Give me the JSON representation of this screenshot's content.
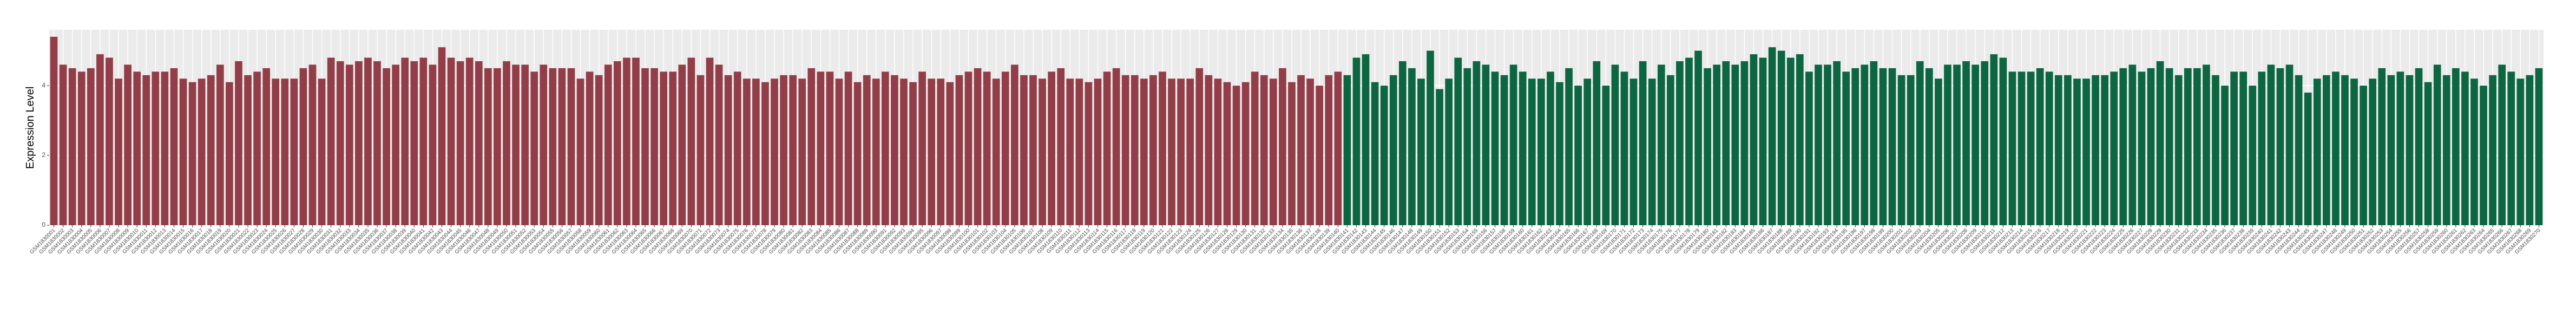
{
  "chart_data": {
    "type": "bar",
    "ylabel": "Expression Level",
    "categories": [
      "GSM1830001",
      "GSM1830002",
      "GSM1830003",
      "GSM1830004",
      "GSM1830005",
      "GSM1830006",
      "GSM1830007",
      "GSM1830008",
      "GSM1830009",
      "GSM1830010",
      "GSM1830011",
      "GSM1830012",
      "GSM1830013",
      "GSM1830014",
      "GSM1830015",
      "GSM1830016",
      "GSM1830017",
      "GSM1830018",
      "GSM1830019",
      "GSM1830020",
      "GSM1830021",
      "GSM1830022",
      "GSM1830023",
      "GSM1830024",
      "GSM1830025",
      "GSM1830026",
      "GSM1830027",
      "GSM1830028",
      "GSM1830029",
      "GSM1830030",
      "GSM1830031",
      "GSM1830032",
      "GSM1830033",
      "GSM1830034",
      "GSM1830035",
      "GSM1830036",
      "GSM1830037",
      "GSM1830038",
      "GSM1830039",
      "GSM1830040",
      "GSM1830041",
      "GSM1830042",
      "GSM1830043",
      "GSM1830044",
      "GSM1830045",
      "GSM1830046",
      "GSM1830047",
      "GSM1830048",
      "GSM1830049",
      "GSM1830050",
      "GSM1830051",
      "GSM1830052",
      "GSM1830053",
      "GSM1830054",
      "GSM1830055",
      "GSM1830056",
      "GSM1830057",
      "GSM1830058",
      "GSM1830059",
      "GSM1830060",
      "GSM1830061",
      "GSM1830062",
      "GSM1830063",
      "GSM1830064",
      "GSM1830065",
      "GSM1830066",
      "GSM1830067",
      "GSM1830068",
      "GSM1830069",
      "GSM1830070",
      "GSM1830071",
      "GSM1830072",
      "GSM1830073",
      "GSM1830074",
      "GSM1830075",
      "GSM1830076",
      "GSM1830077",
      "GSM1830078",
      "GSM1830079",
      "GSM1830080",
      "GSM1830081",
      "GSM1830082",
      "GSM1830083",
      "GSM1830084",
      "GSM1830085",
      "GSM1830086",
      "GSM1830087",
      "GSM1830088",
      "GSM1830089",
      "GSM1830090",
      "GSM1830091",
      "GSM1830092",
      "GSM1830093",
      "GSM1830094",
      "GSM1830095",
      "GSM1830096",
      "GSM1830097",
      "GSM1830098",
      "GSM1830099",
      "GSM1830100",
      "GSM1830101",
      "GSM1830102",
      "GSM1830103",
      "GSM1830104",
      "GSM1830105",
      "GSM1830106",
      "GSM1830107",
      "GSM1830108",
      "GSM1830109",
      "GSM1830110",
      "GSM1830111",
      "GSM1830112",
      "GSM1830113",
      "GSM1830114",
      "GSM1830115",
      "GSM1830116",
      "GSM1830117",
      "GSM1830118",
      "GSM1830119",
      "GSM1830120",
      "GSM1830121",
      "GSM1830122",
      "GSM1830123",
      "GSM1830124",
      "GSM1830125",
      "GSM1830126",
      "GSM1830127",
      "GSM1830128",
      "GSM1830129",
      "GSM1830130",
      "GSM1830131",
      "GSM1830132",
      "GSM1830133",
      "GSM1830134",
      "GSM1830135",
      "GSM1830136",
      "GSM1830137",
      "GSM1830138",
      "GSM1830139",
      "GSM1830140",
      "GSM1830141",
      "GSM1830142",
      "GSM1830143",
      "GSM1830144",
      "GSM1830145",
      "GSM1830146",
      "GSM1830147",
      "GSM1830148",
      "GSM1830149",
      "GSM1830150",
      "GSM1830151",
      "GSM1830152",
      "GSM1830153",
      "GSM1830154",
      "GSM1830155",
      "GSM1830156",
      "GSM1830157",
      "GSM1830158",
      "GSM1830159",
      "GSM1830160",
      "GSM1830161",
      "GSM1830162",
      "GSM1830163",
      "GSM1830164",
      "GSM1830165",
      "GSM1830166",
      "GSM1830167",
      "GSM1830168",
      "GSM1830169",
      "GSM1830170",
      "GSM1830171",
      "GSM1830172",
      "GSM1830173",
      "GSM1830174",
      "GSM1830175",
      "GSM1830176",
      "GSM1830177",
      "GSM1830178",
      "GSM1830179",
      "GSM1830180",
      "GSM1830181",
      "GSM1830182",
      "GSM1830183",
      "GSM1830184",
      "GSM1830185",
      "GSM1830186",
      "GSM1830187",
      "GSM1830188",
      "GSM1830189",
      "GSM1830190",
      "GSM1830191",
      "GSM1830192",
      "GSM1830193",
      "GSM1830194",
      "GSM1830195",
      "GSM1830196",
      "GSM1830197",
      "GSM1830198",
      "GSM1830199",
      "GSM1830200",
      "GSM1830201",
      "GSM1830202",
      "GSM1830203",
      "GSM1830204",
      "GSM1830205",
      "GSM1830206",
      "GSM1830207",
      "GSM1830208",
      "GSM1830209",
      "GSM1830210",
      "GSM1830211",
      "GSM1830212",
      "GSM1830213",
      "GSM1830214",
      "GSM1830215",
      "GSM1830216",
      "GSM1830217",
      "GSM1830218",
      "GSM1830219",
      "GSM1830220",
      "GSM1830221",
      "GSM1830222",
      "GSM1830223",
      "GSM1830224",
      "GSM1830225",
      "GSM1830226",
      "GSM1830227",
      "GSM1830228",
      "GSM1830229",
      "GSM1830230",
      "GSM1830231",
      "GSM1830232",
      "GSM1830233",
      "GSM1830234",
      "GSM1830235",
      "GSM1830236",
      "GSM1830237",
      "GSM1830238",
      "GSM1830239",
      "GSM1830240",
      "GSM1830241",
      "GSM1830242",
      "GSM1830243",
      "GSM1830244",
      "GSM1830245",
      "GSM1830246",
      "GSM1830247",
      "GSM1830248",
      "GSM1830249",
      "GSM1830250",
      "GSM1830251",
      "GSM1830252",
      "GSM1830253",
      "GSM1830254",
      "GSM1830255",
      "GSM1830256",
      "GSM1830257",
      "GSM1830258",
      "GSM1830259",
      "GSM1830260",
      "GSM1830261",
      "GSM1830262",
      "GSM1830263",
      "GSM1830264",
      "GSM1830265",
      "GSM1830266",
      "GSM1830267",
      "GSM1830268",
      "GSM1830269",
      "GSM1830270"
    ],
    "values": [
      5.4,
      4.6,
      4.5,
      4.4,
      4.5,
      4.9,
      4.8,
      4.2,
      4.6,
      4.4,
      4.3,
      4.4,
      4.4,
      4.5,
      4.2,
      4.1,
      4.2,
      4.3,
      4.6,
      4.1,
      4.7,
      4.3,
      4.4,
      4.5,
      4.2,
      4.2,
      4.2,
      4.5,
      4.6,
      4.2,
      4.8,
      4.7,
      4.6,
      4.7,
      4.8,
      4.7,
      4.5,
      4.6,
      4.8,
      4.7,
      4.8,
      4.6,
      5.1,
      4.8,
      4.7,
      4.8,
      4.7,
      4.5,
      4.5,
      4.7,
      4.6,
      4.6,
      4.4,
      4.6,
      4.5,
      4.5,
      4.5,
      4.2,
      4.4,
      4.3,
      4.6,
      4.7,
      4.8,
      4.8,
      4.5,
      4.5,
      4.4,
      4.4,
      4.6,
      4.8,
      4.3,
      4.8,
      4.6,
      4.3,
      4.4,
      4.2,
      4.2,
      4.1,
      4.2,
      4.3,
      4.3,
      4.2,
      4.5,
      4.4,
      4.4,
      4.2,
      4.4,
      4.1,
      4.3,
      4.2,
      4.4,
      4.3,
      4.2,
      4.1,
      4.4,
      4.2,
      4.2,
      4.1,
      4.3,
      4.4,
      4.5,
      4.4,
      4.2,
      4.4,
      4.6,
      4.3,
      4.3,
      4.2,
      4.4,
      4.5,
      4.2,
      4.2,
      4.1,
      4.2,
      4.4,
      4.5,
      4.3,
      4.3,
      4.2,
      4.3,
      4.4,
      4.2,
      4.2,
      4.2,
      4.5,
      4.3,
      4.2,
      4.1,
      4.0,
      4.1,
      4.4,
      4.3,
      4.2,
      4.5,
      4.1,
      4.3,
      4.2,
      4.0,
      4.3,
      4.4,
      4.3,
      4.8,
      4.9,
      4.1,
      4.0,
      4.3,
      4.7,
      4.5,
      4.2,
      5.0,
      3.9,
      4.2,
      4.8,
      4.5,
      4.7,
      4.6,
      4.4,
      4.3,
      4.6,
      4.4,
      4.2,
      4.2,
      4.4,
      4.1,
      4.5,
      4.0,
      4.2,
      4.7,
      4.0,
      4.6,
      4.4,
      4.2,
      4.7,
      4.2,
      4.6,
      4.3,
      4.7,
      4.8,
      5.0,
      4.5,
      4.6,
      4.7,
      4.6,
      4.7,
      4.9,
      4.8,
      5.1,
      5.0,
      4.8,
      4.9,
      4.4,
      4.6,
      4.6,
      4.7,
      4.4,
      4.5,
      4.6,
      4.7,
      4.5,
      4.5,
      4.3,
      4.3,
      4.7,
      4.5,
      4.2,
      4.6,
      4.6,
      4.7,
      4.6,
      4.7,
      4.9,
      4.8,
      4.4,
      4.4,
      4.4,
      4.5,
      4.4,
      4.3,
      4.3,
      4.2,
      4.2,
      4.3,
      4.3,
      4.4,
      4.5,
      4.6,
      4.4,
      4.5,
      4.7,
      4.5,
      4.3,
      4.5,
      4.5,
      4.6,
      4.3,
      4.0,
      4.4,
      4.4,
      4.0,
      4.4,
      4.6,
      4.5,
      4.6,
      4.3,
      3.8,
      4.2,
      4.3,
      4.4,
      4.3,
      4.2,
      4.0,
      4.2,
      4.5,
      4.3,
      4.4,
      4.3,
      4.5,
      4.1,
      4.6,
      4.3,
      4.5,
      4.4,
      4.2,
      4.0,
      4.3,
      4.6,
      4.4,
      4.2,
      4.3,
      4.5
    ],
    "colors": [
      "#923d47",
      "#923d47",
      "#923d47",
      "#923d47",
      "#923d47",
      "#923d47",
      "#923d47",
      "#923d47",
      "#923d47",
      "#923d47",
      "#923d47",
      "#923d47",
      "#923d47",
      "#923d47",
      "#923d47",
      "#923d47",
      "#923d47",
      "#923d47",
      "#923d47",
      "#923d47",
      "#923d47",
      "#923d47",
      "#923d47",
      "#923d47",
      "#923d47",
      "#923d47",
      "#923d47",
      "#923d47",
      "#923d47",
      "#923d47",
      "#923d47",
      "#923d47",
      "#923d47",
      "#923d47",
      "#923d47",
      "#923d47",
      "#923d47",
      "#923d47",
      "#923d47",
      "#923d47",
      "#923d47",
      "#923d47",
      "#923d47",
      "#923d47",
      "#923d47",
      "#923d47",
      "#923d47",
      "#923d47",
      "#923d47",
      "#923d47",
      "#923d47",
      "#923d47",
      "#923d47",
      "#923d47",
      "#923d47",
      "#923d47",
      "#923d47",
      "#923d47",
      "#923d47",
      "#923d47",
      "#923d47",
      "#923d47",
      "#923d47",
      "#923d47",
      "#923d47",
      "#923d47",
      "#923d47",
      "#923d47",
      "#923d47",
      "#923d47",
      "#923d47",
      "#923d47",
      "#923d47",
      "#923d47",
      "#923d47",
      "#923d47",
      "#923d47",
      "#923d47",
      "#923d47",
      "#923d47",
      "#923d47",
      "#923d47",
      "#923d47",
      "#923d47",
      "#923d47",
      "#923d47",
      "#923d47",
      "#923d47",
      "#923d47",
      "#923d47",
      "#923d47",
      "#923d47",
      "#923d47",
      "#923d47",
      "#923d47",
      "#923d47",
      "#923d47",
      "#923d47",
      "#923d47",
      "#923d47",
      "#923d47",
      "#923d47",
      "#923d47",
      "#923d47",
      "#923d47",
      "#923d47",
      "#923d47",
      "#923d47",
      "#923d47",
      "#923d47",
      "#923d47",
      "#923d47",
      "#923d47",
      "#923d47",
      "#923d47",
      "#923d47",
      "#923d47",
      "#923d47",
      "#923d47",
      "#923d47",
      "#923d47",
      "#923d47",
      "#923d47",
      "#923d47",
      "#923d47",
      "#923d47",
      "#923d47",
      "#923d47",
      "#923d47",
      "#923d47",
      "#923d47",
      "#923d47",
      "#923d47",
      "#923d47",
      "#923d47",
      "#923d47",
      "#923d47",
      "#923d47",
      "#923d47",
      "#923d47",
      "#0c6641",
      "#0c6641",
      "#0c6641",
      "#0c6641",
      "#0c6641",
      "#0c6641",
      "#0c6641",
      "#0c6641",
      "#0c6641",
      "#0c6641",
      "#0c6641",
      "#0c6641",
      "#0c6641",
      "#0c6641",
      "#0c6641",
      "#0c6641",
      "#0c6641",
      "#0c6641",
      "#0c6641",
      "#0c6641",
      "#0c6641",
      "#0c6641",
      "#0c6641",
      "#0c6641",
      "#0c6641",
      "#0c6641",
      "#0c6641",
      "#0c6641",
      "#0c6641",
      "#0c6641",
      "#0c6641",
      "#0c6641",
      "#0c6641",
      "#0c6641",
      "#0c6641",
      "#0c6641",
      "#0c6641",
      "#0c6641",
      "#0c6641",
      "#0c6641",
      "#0c6641",
      "#0c6641",
      "#0c6641",
      "#0c6641",
      "#0c6641",
      "#0c6641",
      "#0c6641",
      "#0c6641",
      "#0c6641",
      "#0c6641",
      "#0c6641",
      "#0c6641",
      "#0c6641",
      "#0c6641",
      "#0c6641",
      "#0c6641",
      "#0c6641",
      "#0c6641",
      "#0c6641",
      "#0c6641",
      "#0c6641",
      "#0c6641",
      "#0c6641",
      "#0c6641",
      "#0c6641",
      "#0c6641",
      "#0c6641",
      "#0c6641",
      "#0c6641",
      "#0c6641",
      "#0c6641",
      "#0c6641",
      "#0c6641",
      "#0c6641",
      "#0c6641",
      "#0c6641",
      "#0c6641",
      "#0c6641",
      "#0c6641",
      "#0c6641",
      "#0c6641",
      "#0c6641",
      "#0c6641",
      "#0c6641",
      "#0c6641",
      "#0c6641",
      "#0c6641",
      "#0c6641",
      "#0c6641",
      "#0c6641",
      "#0c6641",
      "#0c6641",
      "#0c6641",
      "#0c6641",
      "#0c6641",
      "#0c6641",
      "#0c6641",
      "#0c6641",
      "#0c6641",
      "#0c6641",
      "#0c6641",
      "#0c6641",
      "#0c6641",
      "#0c6641",
      "#0c6641",
      "#0c6641",
      "#0c6641",
      "#0c6641",
      "#0c6641",
      "#0c6641",
      "#0c6641",
      "#0c6641",
      "#0c6641",
      "#0c6641",
      "#0c6641",
      "#0c6641",
      "#0c6641",
      "#0c6641",
      "#0c6641",
      "#0c6641",
      "#0c6641",
      "#0c6641",
      "#0c6641",
      "#0c6641",
      "#0c6641",
      "#0c6641",
      "#0c6641",
      "#0c6641",
      "#0c6641",
      "#0c6641"
    ],
    "ylim": [
      0,
      5.6
    ],
    "yticks": [
      0,
      2,
      4
    ],
    "grid": true
  }
}
